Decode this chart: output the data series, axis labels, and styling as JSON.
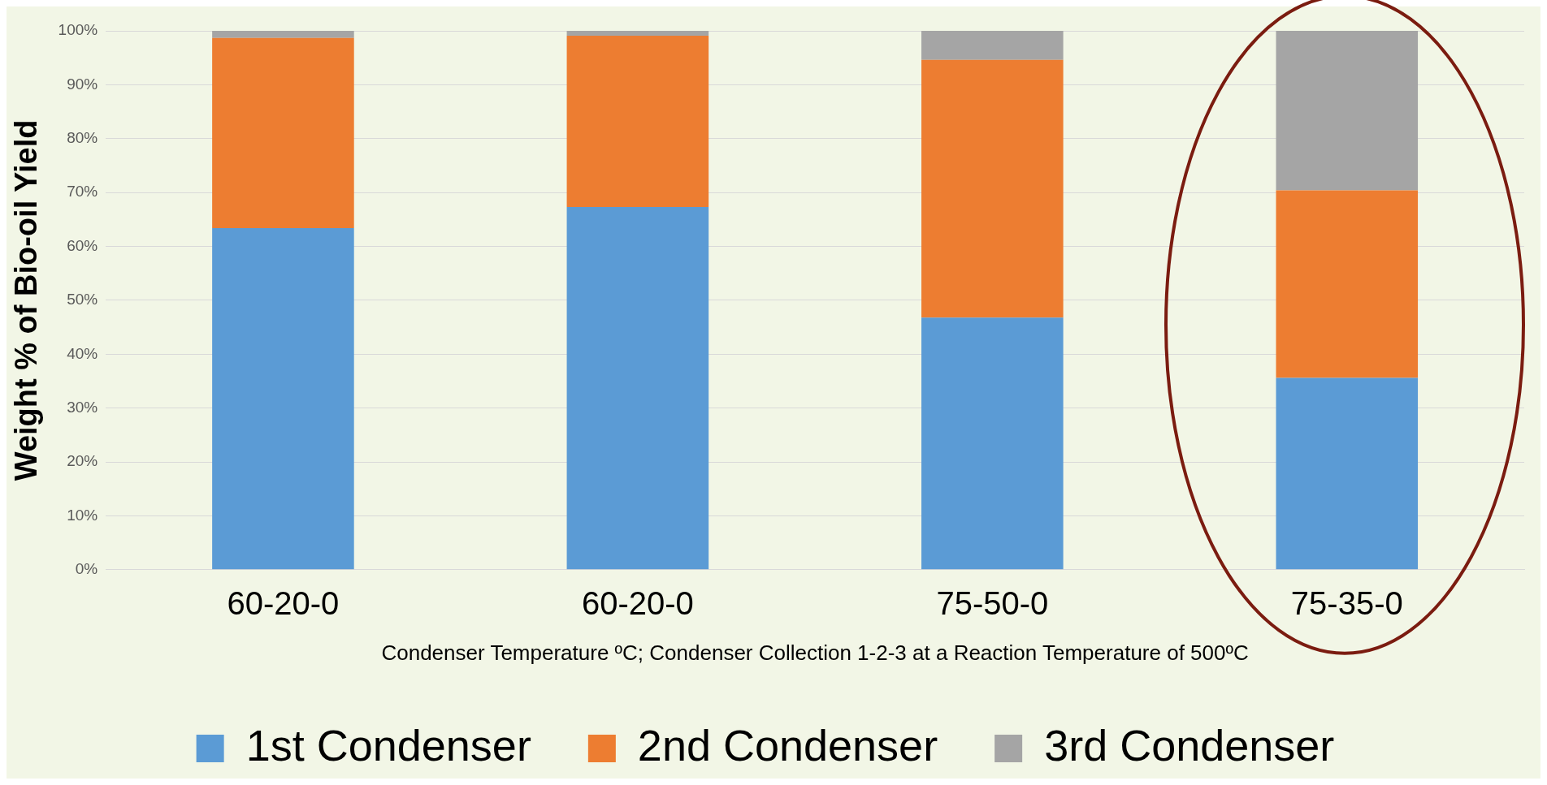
{
  "chart_data": {
    "type": "bar",
    "stacked": true,
    "xlabel": "Condenser Temperature ºC; Condenser Collection 1-2-3 at a Reaction Temperature of 500ºC",
    "ylabel": "Weight % of Bio-oil Yield",
    "categories": [
      "60-20-0",
      "60-20-0",
      "75-50-0",
      "75-35-0"
    ],
    "series": [
      {
        "name": "1st Condenser",
        "color": "#5b9bd5",
        "values": [
          63.4,
          67.3,
          46.8,
          35.6
        ]
      },
      {
        "name": "2nd Condenser",
        "color": "#ed7d31",
        "values": [
          35.3,
          31.8,
          47.8,
          34.8
        ]
      },
      {
        "name": "3rd Condenser",
        "color": "#a5a5a5",
        "values": [
          1.3,
          0.9,
          5.4,
          29.6
        ]
      }
    ],
    "ylim": [
      0,
      100
    ],
    "yticks": [
      {
        "value": 0,
        "label": "0%"
      },
      {
        "value": 10,
        "label": "10%"
      },
      {
        "value": 20,
        "label": "20%"
      },
      {
        "value": 30,
        "label": "30%"
      },
      {
        "value": 40,
        "label": "40%"
      },
      {
        "value": 50,
        "label": "50%"
      },
      {
        "value": 60,
        "label": "60%"
      },
      {
        "value": 70,
        "label": "70%"
      },
      {
        "value": 80,
        "label": "80%"
      },
      {
        "value": 90,
        "label": "90%"
      },
      {
        "value": 100,
        "label": "100%"
      }
    ],
    "grid": "y",
    "legend": "bottom"
  }
}
